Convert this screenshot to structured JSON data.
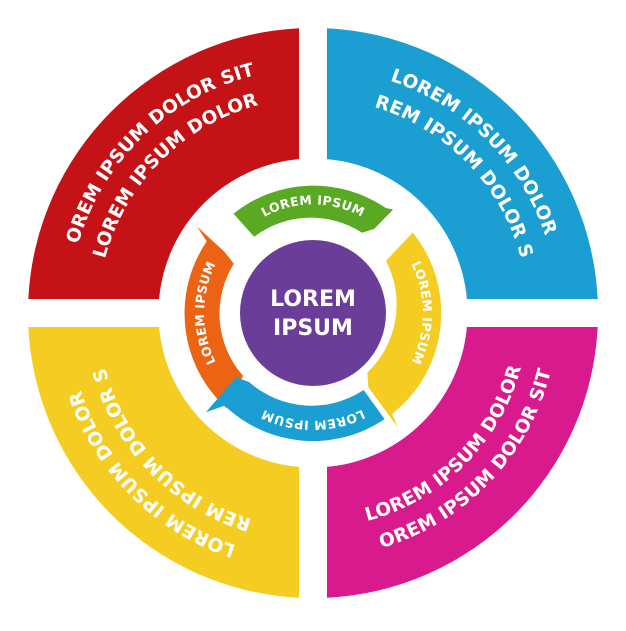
{
  "quadrants": [
    {
      "id": "top-left",
      "color": "#c41216",
      "lines": [
        "LOREM IPSUM DOLOR SIT",
        "LOREM IPSUM DOLOR"
      ]
    },
    {
      "id": "top-right",
      "color": "#1b9fd3",
      "lines": [
        "LOREM IPSUM DOLOR",
        "LOREM IPSUM DOLOR SIT"
      ]
    },
    {
      "id": "bottom-right",
      "color": "#d81a8c",
      "lines": [
        "LOREM IPSUM DOLOR SIT",
        "LOREM IPSUM DOLOR"
      ]
    },
    {
      "id": "bottom-left",
      "color": "#f5cd22",
      "lines": [
        "LOREM IPSUM DOLOR",
        "LOREM IPSUM DOLOR SIT"
      ]
    }
  ],
  "ring": [
    {
      "id": "top",
      "color": "#5aa923",
      "label": "LOREM IPSUM"
    },
    {
      "id": "right",
      "color": "#f5cd22",
      "label": "LOREM IPSUM"
    },
    {
      "id": "bottom",
      "color": "#1b9fd3",
      "label": "LOREM IPSUM"
    },
    {
      "id": "left",
      "color": "#ec6314",
      "label": "LOREM IPSUM"
    }
  ],
  "center": {
    "color": "#6a3e98",
    "lines": [
      "LOREM",
      "IPSUM"
    ]
  }
}
